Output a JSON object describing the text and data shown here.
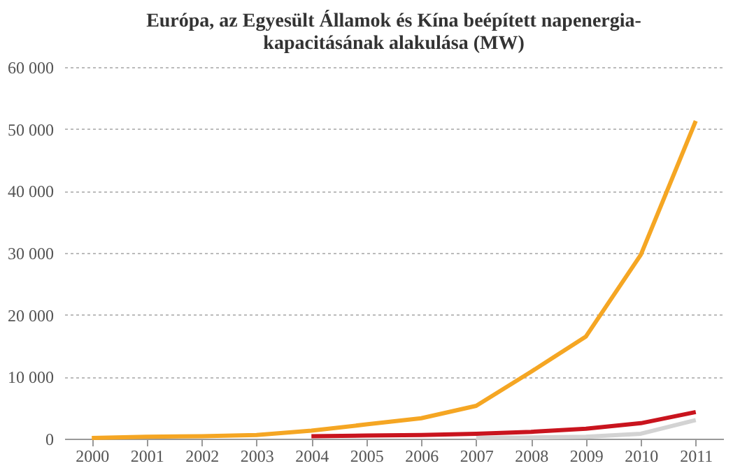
{
  "chart_data": {
    "type": "line",
    "title": [
      "Európa, az Egyesült Államok és Kína beépített napenergia-",
      "kapacitásának alakulása (MW)"
    ],
    "categories": [
      "2000",
      "2001",
      "2002",
      "2003",
      "2004",
      "2005",
      "2006",
      "2007",
      "2008",
      "2009",
      "2010",
      "2011"
    ],
    "series": [
      {
        "color": "#c9141e",
        "values": [
          null,
          null,
          null,
          null,
          400,
          500,
          600,
          800,
          1100,
          1600,
          2500,
          4300
        ]
      },
      {
        "color": "#d3d3d3",
        "values": [
          null,
          null,
          null,
          null,
          null,
          null,
          null,
          100,
          200,
          300,
          800,
          3000
        ]
      },
      {
        "color": "#f5a623",
        "values": [
          100,
          300,
          400,
          600,
          1300,
          2300,
          3300,
          5300,
          10800,
          16500,
          29700,
          51300
        ]
      }
    ],
    "ylim": [
      0,
      60000
    ],
    "yticks": [
      0,
      {
        "value": 10000,
        "label": "10 000"
      },
      {
        "value": 20000,
        "label": "20 000"
      },
      {
        "value": 30000,
        "label": "30 000"
      },
      {
        "value": 40000,
        "label": "40 000"
      },
      {
        "value": 50000,
        "label": "50 000"
      },
      {
        "value": 60000,
        "label": "60 000"
      }
    ],
    "grid": "y",
    "legend": false,
    "marker": "none",
    "line_style": "solid"
  }
}
